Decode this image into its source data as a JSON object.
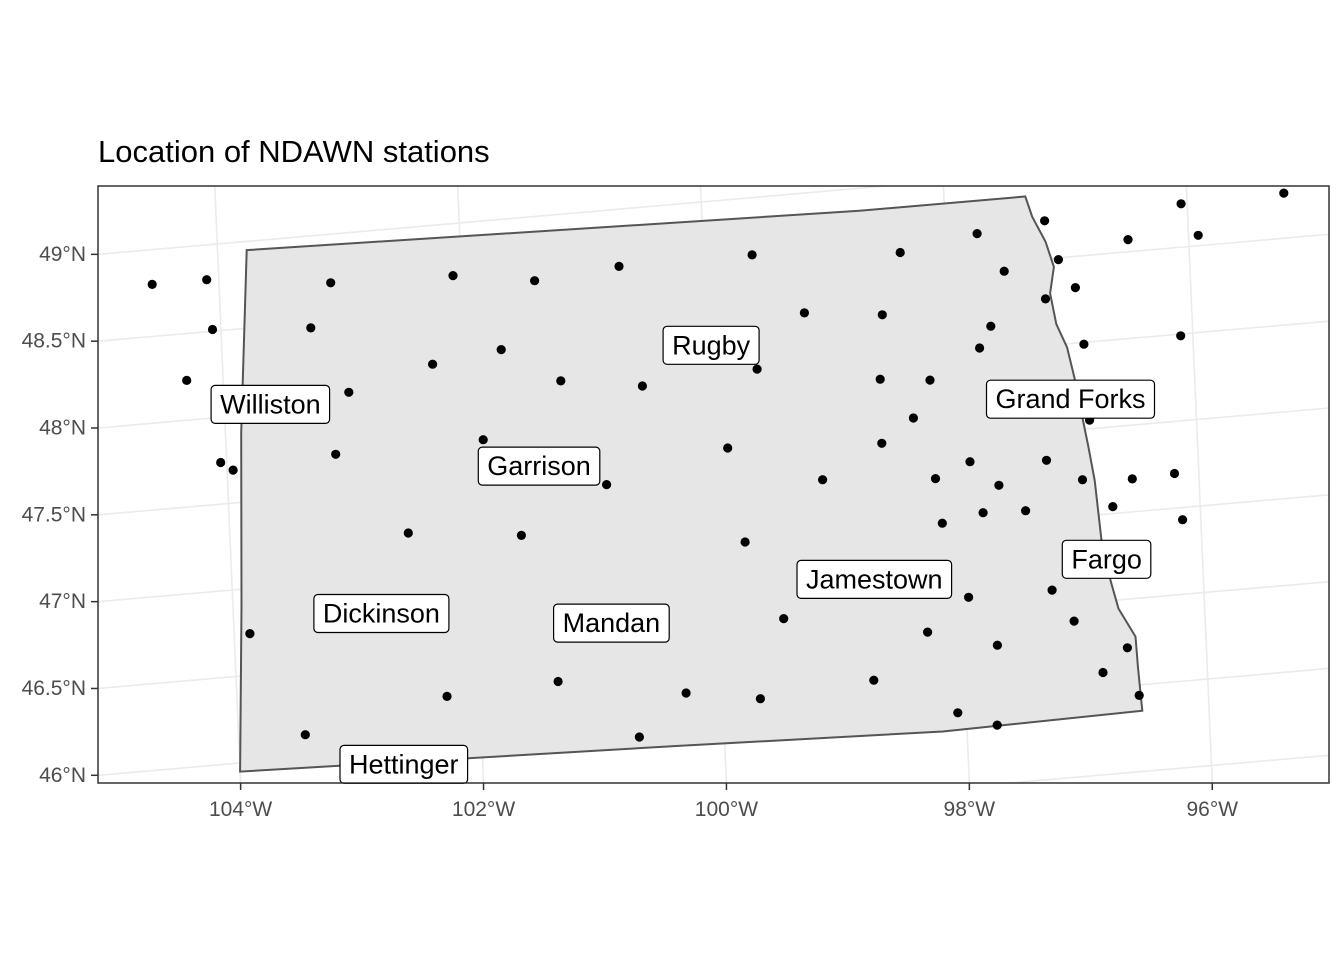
{
  "title": "Location of NDAWN stations",
  "map": {
    "lon_range": [
      -105.0,
      -95.0
    ],
    "lat_range": [
      45.65,
      49.1
    ],
    "x_ticks": [
      {
        "lon": -104,
        "label": "104°W"
      },
      {
        "lon": -102,
        "label": "102°W"
      },
      {
        "lon": -100,
        "label": "100°W"
      },
      {
        "lon": -98,
        "label": "98°W"
      },
      {
        "lon": -96,
        "label": "96°W"
      }
    ],
    "y_ticks": [
      {
        "lat": 49,
        "label": "49°N"
      },
      {
        "lat": 48.5,
        "label": "48.5°N"
      },
      {
        "lat": 48,
        "label": "48°N"
      },
      {
        "lat": 47.5,
        "label": "47.5°N"
      },
      {
        "lat": 47,
        "label": "47°N"
      },
      {
        "lat": 46.5,
        "label": "46.5°N"
      },
      {
        "lat": 46,
        "label": "46°N"
      }
    ],
    "state_fill": "#e6e6e6",
    "state_stroke": "#555555",
    "panel_border": "#333333",
    "grid_color": "#ebebeb",
    "point_color": "#000000",
    "state_outline": [
      [
        -103.76,
        48.95
      ],
      [
        -98.7,
        48.87
      ],
      [
        -97.33,
        48.87
      ],
      [
        -97.28,
        48.75
      ],
      [
        -97.18,
        48.6
      ],
      [
        -97.12,
        48.45
      ],
      [
        -97.16,
        48.3
      ],
      [
        -97.12,
        48.12
      ],
      [
        -97.04,
        47.98
      ],
      [
        -96.99,
        47.8
      ],
      [
        -96.95,
        47.62
      ],
      [
        -96.9,
        47.4
      ],
      [
        -96.86,
        47.2
      ],
      [
        -96.84,
        47.0
      ],
      [
        -96.82,
        46.8
      ],
      [
        -96.76,
        46.6
      ],
      [
        -96.71,
        46.45
      ],
      [
        -96.58,
        46.28
      ],
      [
        -96.57,
        46.1
      ],
      [
        -96.55,
        45.85
      ],
      [
        -98.2,
        45.83
      ],
      [
        -100.4,
        45.88
      ],
      [
        -104.0,
        45.95
      ],
      [
        -103.93,
        46.9
      ],
      [
        -103.87,
        47.9
      ],
      [
        -103.76,
        48.95
      ]
    ],
    "cities": [
      {
        "name": "Williston",
        "lon": -103.62,
        "lat": 48.05
      },
      {
        "name": "Rugby",
        "lon": -99.97,
        "lat": 48.17
      },
      {
        "name": "Garrison",
        "lon": -101.43,
        "lat": 47.56
      },
      {
        "name": "Grand Forks",
        "lon": -97.03,
        "lat": 47.68
      },
      {
        "name": "Dickinson",
        "lon": -102.78,
        "lat": 46.79
      },
      {
        "name": "Mandan",
        "lon": -100.89,
        "lat": 46.62
      },
      {
        "name": "Jamestown",
        "lon": -98.71,
        "lat": 46.74
      },
      {
        "name": "Fargo",
        "lon": -96.79,
        "lat": 46.74
      },
      {
        "name": "Hettinger",
        "lon": -102.65,
        "lat": 45.91
      }
    ],
    "stations": [
      [
        -104.55,
        48.8
      ],
      [
        -104.1,
        48.8
      ],
      [
        -104.07,
        48.51
      ],
      [
        -104.3,
        48.23
      ],
      [
        -104.05,
        47.74
      ],
      [
        -103.95,
        47.69
      ],
      [
        -103.87,
        46.74
      ],
      [
        -103.45,
        46.13
      ],
      [
        -103.26,
        48.47
      ],
      [
        -103.08,
        48.72
      ],
      [
        -102.97,
        48.08
      ],
      [
        -103.1,
        47.73
      ],
      [
        -102.53,
        47.24
      ],
      [
        -102.27,
        48.2
      ],
      [
        -102.27,
        46.28
      ],
      [
        -102.07,
        48.7
      ],
      [
        -101.88,
        47.74
      ],
      [
        -101.7,
        48.25
      ],
      [
        -101.6,
        47.17
      ],
      [
        -101.4,
        48.63
      ],
      [
        -101.22,
        48.04
      ],
      [
        -101.35,
        46.31
      ],
      [
        -100.88,
        47.42
      ],
      [
        -100.7,
        48.67
      ],
      [
        -100.55,
        47.97
      ],
      [
        -100.3,
        46.18
      ],
      [
        -100.7,
        45.95
      ],
      [
        -99.87,
        47.57
      ],
      [
        -99.76,
        47.02
      ],
      [
        -99.6,
        48.01
      ],
      [
        -99.6,
        48.67
      ],
      [
        -99.69,
        46.11
      ],
      [
        -99.47,
        46.56
      ],
      [
        -99.19,
        48.31
      ],
      [
        -99.1,
        47.34
      ],
      [
        -98.75,
        46.16
      ],
      [
        -98.55,
        48.26
      ],
      [
        -98.59,
        47.89
      ],
      [
        -98.6,
        47.52
      ],
      [
        -98.38,
        48.61
      ],
      [
        -98.33,
        47.65
      ],
      [
        -98.29,
        46.41
      ],
      [
        -98.18,
        47.86
      ],
      [
        -98.17,
        47.29
      ],
      [
        -98.13,
        47.03
      ],
      [
        -98.07,
        45.93
      ],
      [
        -97.94,
        46.59
      ],
      [
        -97.88,
        47.37
      ],
      [
        -97.79,
        47.07
      ],
      [
        -97.76,
        48.02
      ],
      [
        -97.74,
        48.68
      ],
      [
        -97.72,
        46.3
      ],
      [
        -97.66,
        48.14
      ],
      [
        -97.65,
        47.22
      ],
      [
        -97.53,
        48.45
      ],
      [
        -97.44,
        47.06
      ],
      [
        -97.25,
        47.34
      ],
      [
        -97.25,
        46.59
      ],
      [
        -97.2,
        48.27
      ],
      [
        -97.18,
        48.72
      ],
      [
        -97.08,
        48.49
      ],
      [
        -97.08,
        46.4
      ],
      [
        -96.96,
        47.21
      ],
      [
        -96.95,
        48.32
      ],
      [
        -96.9,
        47.99
      ],
      [
        -96.88,
        47.55
      ],
      [
        -96.86,
        46.09
      ],
      [
        -96.72,
        47.04
      ],
      [
        -96.65,
        46.22
      ],
      [
        -96.55,
        47.19
      ],
      [
        -96.57,
        45.94
      ],
      [
        -96.5,
        48.57
      ],
      [
        -96.2,
        47.2
      ],
      [
        -96.15,
        46.93
      ],
      [
        -96.1,
        47.99
      ],
      [
        -96.05,
        48.75
      ],
      [
        -95.92,
        48.56
      ],
      [
        -95.2,
        48.76
      ],
      [
        -97.75,
        45.84
      ]
    ]
  }
}
